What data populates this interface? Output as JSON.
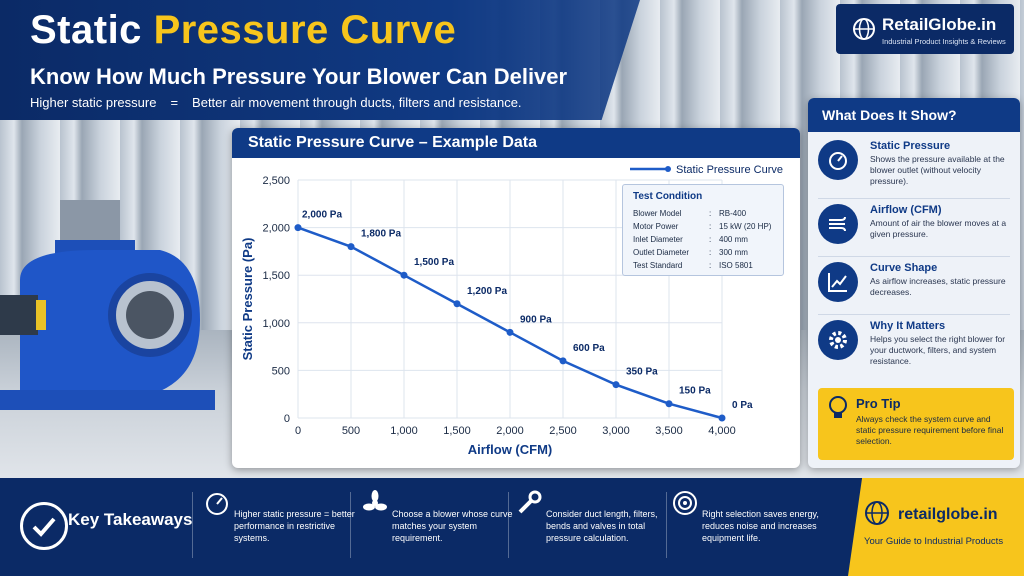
{
  "header": {
    "title_part1": "Static",
    "title_part2": "Pressure Curve",
    "subtitle": "Know How Much Pressure Your Blower Can Deliver",
    "tagline_left": "Higher static pressure",
    "tagline_eq": "=",
    "tagline_right": "Better air movement through ducts, filters and resistance."
  },
  "brand_top": {
    "name": "RetailGlobe.in",
    "sub": "Industrial Product Insights & Reviews"
  },
  "chart_panel": {
    "title": "Static Pressure Curve – Example Data"
  },
  "chart_data": {
    "type": "line",
    "title": "",
    "xlabel": "Airflow (CFM)",
    "ylabel": "Static Pressure (Pa)",
    "x": [
      0,
      500,
      1000,
      1500,
      2000,
      2500,
      3000,
      3500,
      4000
    ],
    "series": [
      {
        "name": "Static Pressure Curve",
        "values": [
          2000,
          1800,
          1500,
          1200,
          900,
          600,
          350,
          150,
          0
        ],
        "labels": [
          "2,000 Pa",
          "1,800 Pa",
          "1,500 Pa",
          "1,200 Pa",
          "900 Pa",
          "600 Pa",
          "350 Pa",
          "150 Pa",
          "0 Pa"
        ],
        "color": "#1e5cc8"
      }
    ],
    "xticks": [
      "0",
      "500",
      "1,000",
      "1,500",
      "2,000",
      "2,500",
      "3,000",
      "3,500",
      "4,000"
    ],
    "yticks": [
      "0",
      "500",
      "1,000",
      "1,500",
      "2,000",
      "2,500"
    ],
    "ytick_values": [
      0,
      500,
      1000,
      1500,
      2000,
      2500
    ],
    "xlim": [
      0,
      4000
    ],
    "ylim": [
      0,
      2500
    ],
    "grid": true,
    "legend": "top-right"
  },
  "test_condition": {
    "title": "Test Condition",
    "rows": [
      {
        "key": "Blower Model",
        "colon": ":",
        "value": "RB-400"
      },
      {
        "key": "Motor Power",
        "colon": ":",
        "value": "15 kW (20 HP)"
      },
      {
        "key": "Inlet Diameter",
        "colon": ":",
        "value": "400 mm"
      },
      {
        "key": "Outlet Diameter",
        "colon": ":",
        "value": "300 mm"
      },
      {
        "key": "Test Standard",
        "colon": ":",
        "value": "ISO 5801"
      }
    ]
  },
  "side_panel": {
    "title": "What Does It Show?",
    "items": [
      {
        "icon": "gauge-icon",
        "title": "Static Pressure",
        "desc": "Shows the pressure available at the blower outlet (without velocity pressure)."
      },
      {
        "icon": "wind-icon",
        "title": "Airflow (CFM)",
        "desc": "Amount of air the blower moves at a given pressure."
      },
      {
        "icon": "curve-icon",
        "title": "Curve Shape",
        "desc": "As airflow increases, static pressure decreases."
      },
      {
        "icon": "gear-icon",
        "title": "Why It Matters",
        "desc": "Helps you select the right blower for your ductwork, filters, and system resistance."
      }
    ],
    "protip": {
      "title": "Pro Tip",
      "desc": "Always check the system curve and static pressure requirement before final selection."
    }
  },
  "bottom": {
    "key_takeaways": "Key Takeaways",
    "items": [
      {
        "icon": "gauge-icon",
        "text": "Higher static pressure = better performance in restrictive systems."
      },
      {
        "icon": "fan-icon",
        "text": "Choose a blower whose curve matches your system requirement."
      },
      {
        "icon": "wrench-icon",
        "text": "Consider duct length, filters, bends and valves in total pressure calculation."
      },
      {
        "icon": "target-icon",
        "text": "Right selection saves energy, reduces noise and increases equipment life."
      }
    ],
    "brand_name": "retailglobe.in",
    "brand_sub": "Your Guide to Industrial Products"
  },
  "colors": {
    "navy": "#0b2a66",
    "blue": "#0f3a86",
    "accent_yellow": "#f7c51c",
    "line": "#1e5cc8"
  }
}
